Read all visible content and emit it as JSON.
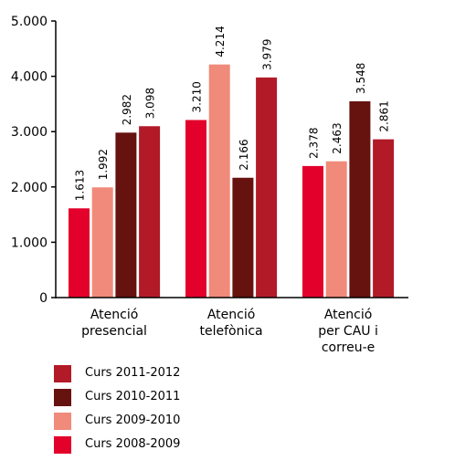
{
  "chart_data": {
    "type": "bar",
    "categories": [
      [
        "Atenció",
        "presencial"
      ],
      [
        "Atenció",
        "telefònica"
      ],
      [
        "Atenció",
        "per CAU i",
        "correu-e"
      ]
    ],
    "ylim": [
      0,
      5000
    ],
    "yticks": [
      "0",
      "1.000",
      "2.000",
      "3.000",
      "4.000",
      "5.000"
    ],
    "ytick_values": [
      0,
      1000,
      2000,
      3000,
      4000,
      5000
    ],
    "series": [
      {
        "name": "Curs 2008-2009",
        "color": "#e3002b",
        "values": [
          1613,
          3210,
          2378
        ],
        "labels": [
          "1.613",
          "3.210",
          "2.378"
        ]
      },
      {
        "name": "Curs 2009-2010",
        "color": "#f08a7a",
        "values": [
          1992,
          4214,
          2463
        ],
        "labels": [
          "1.992",
          "4.214",
          "2.463"
        ]
      },
      {
        "name": "Curs 2010-2011",
        "color": "#66120f",
        "values": [
          2982,
          2166,
          3548
        ],
        "labels": [
          "2.982",
          "2.166",
          "3.548"
        ]
      },
      {
        "name": "Curs 2011-2012",
        "color": "#b21a28",
        "values": [
          3098,
          3979,
          2861
        ],
        "labels": [
          "3.098",
          "3.979",
          "2.861"
        ]
      }
    ],
    "legend_order": [
      "Curs 2011-2012",
      "Curs 2010-2011",
      "Curs 2009-2010",
      "Curs 2008-2009"
    ],
    "grid": false,
    "legend_position": "bottom-left"
  }
}
